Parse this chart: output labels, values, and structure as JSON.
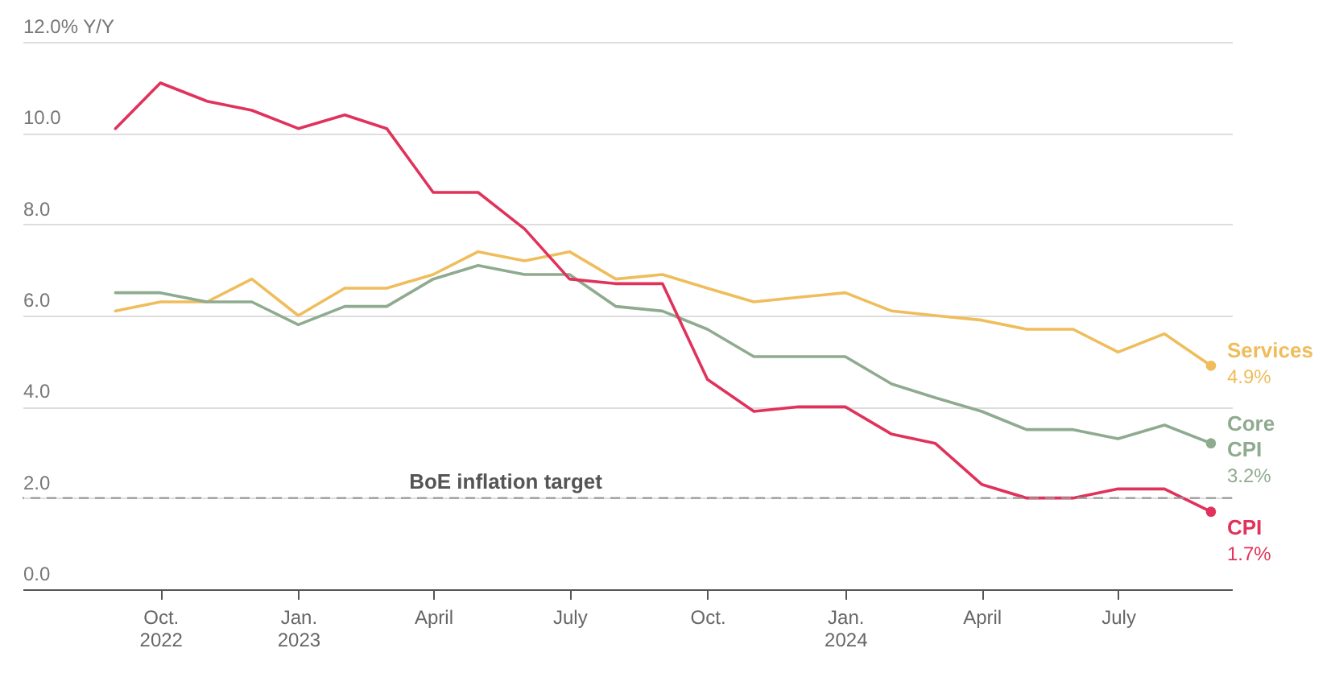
{
  "chart_data": {
    "type": "line",
    "x": [
      "2022-09",
      "2022-10",
      "2022-11",
      "2022-12",
      "2023-01",
      "2023-02",
      "2023-03",
      "2023-04",
      "2023-05",
      "2023-06",
      "2023-07",
      "2023-08",
      "2023-09",
      "2023-10",
      "2023-11",
      "2023-12",
      "2024-01",
      "2024-02",
      "2024-03",
      "2024-04",
      "2024-05",
      "2024-06",
      "2024-07",
      "2024-08",
      "2024-09"
    ],
    "series": [
      {
        "name": "Services",
        "color": "#efbd5c",
        "values": [
          6.1,
          6.3,
          6.3,
          6.8,
          6.0,
          6.6,
          6.6,
          6.9,
          7.4,
          7.2,
          7.4,
          6.8,
          6.9,
          6.6,
          6.3,
          6.4,
          6.5,
          6.1,
          6.0,
          5.9,
          5.7,
          5.7,
          5.2,
          5.6,
          4.9
        ],
        "value_labels": [
          null,
          null,
          null,
          null,
          null,
          null,
          null,
          null,
          null,
          null,
          null,
          null,
          null,
          null,
          null,
          null,
          null,
          null,
          null,
          null,
          null,
          null,
          null,
          null,
          "4.9%"
        ]
      },
      {
        "name": "Core CPI",
        "color": "#8fab8f",
        "values": [
          6.5,
          6.5,
          6.3,
          6.3,
          5.8,
          6.2,
          6.2,
          6.8,
          7.1,
          6.9,
          6.9,
          6.2,
          6.1,
          5.7,
          5.1,
          5.1,
          5.1,
          4.5,
          4.2,
          3.9,
          3.5,
          3.5,
          3.3,
          3.6,
          3.2
        ],
        "value_labels": [
          null,
          null,
          null,
          null,
          null,
          null,
          null,
          null,
          null,
          null,
          null,
          null,
          null,
          null,
          null,
          null,
          null,
          null,
          null,
          null,
          null,
          null,
          null,
          null,
          "3.2%"
        ]
      },
      {
        "name": "CPI",
        "color": "#e0325a",
        "values": [
          10.1,
          11.1,
          10.7,
          10.5,
          10.1,
          10.4,
          10.1,
          8.7,
          8.7,
          7.9,
          6.8,
          6.7,
          6.7,
          4.6,
          3.9,
          4.0,
          4.0,
          3.4,
          3.2,
          2.3,
          2.0,
          2.0,
          2.2,
          2.2,
          1.7
        ],
        "value_labels": [
          null,
          null,
          null,
          null,
          null,
          null,
          null,
          null,
          null,
          null,
          null,
          null,
          null,
          null,
          null,
          null,
          null,
          null,
          null,
          null,
          null,
          null,
          null,
          null,
          "1.7%"
        ]
      }
    ],
    "xlim": [
      "2022-07-01",
      "2024-09-15"
    ],
    "xticks": [
      {
        "value": "2022-10",
        "label": "Oct.\n2022"
      },
      {
        "value": "2023-01",
        "label": "Jan.\n2023"
      },
      {
        "value": "2023-04",
        "label": "April"
      },
      {
        "value": "2023-07",
        "label": "July"
      },
      {
        "value": "2023-10",
        "label": "Oct."
      },
      {
        "value": "2024-01",
        "label": "Jan.\n2024"
      },
      {
        "value": "2024-04",
        "label": "April"
      },
      {
        "value": "2024-07",
        "label": "July"
      }
    ],
    "ylim": [
      0,
      12
    ],
    "yticks": [
      {
        "value": 0,
        "label": "0.0"
      },
      {
        "value": 2,
        "label": "2.0"
      },
      {
        "value": 4,
        "label": "4.0"
      },
      {
        "value": 6,
        "label": "6.0"
      },
      {
        "value": 8,
        "label": "8.0"
      },
      {
        "value": 10,
        "label": "10.0"
      },
      {
        "value": 12,
        "label": "12.0% Y/Y"
      }
    ],
    "ref_lines": [
      {
        "axis": "y",
        "value": 2,
        "label": "BoE inflation target",
        "color": "#999999",
        "line_style": "dashed"
      }
    ],
    "grid": "y",
    "legend": false,
    "line_style": "solid"
  }
}
